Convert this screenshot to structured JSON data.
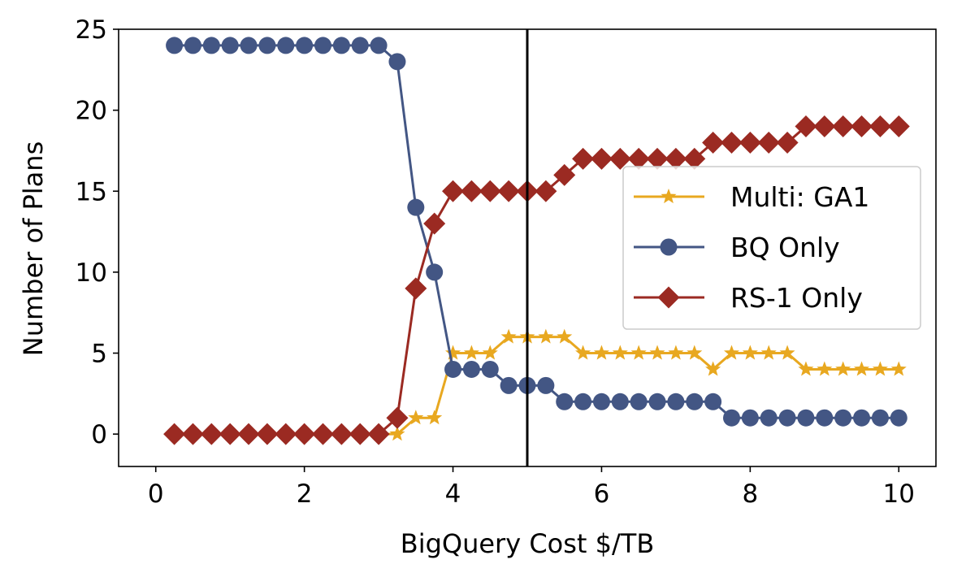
{
  "chart_data": {
    "type": "line",
    "title": "",
    "xlabel": "BigQuery Cost $/TB",
    "ylabel": "Number of Plans",
    "xlim": [
      -0.5,
      10.5
    ],
    "ylim": [
      -2,
      25
    ],
    "xticks": [
      0,
      2,
      4,
      6,
      8,
      10
    ],
    "yticks": [
      0,
      5,
      10,
      15,
      20,
      25
    ],
    "vline": 5,
    "grid": false,
    "legend_position": "center-right",
    "x": [
      0.25,
      0.5,
      0.75,
      1.0,
      1.25,
      1.5,
      1.75,
      2.0,
      2.25,
      2.5,
      2.75,
      3.0,
      3.25,
      3.5,
      3.75,
      4.0,
      4.25,
      4.5,
      4.75,
      5.0,
      5.25,
      5.5,
      5.75,
      6.0,
      6.25,
      6.5,
      6.75,
      7.0,
      7.25,
      7.5,
      7.75,
      8.0,
      8.25,
      8.5,
      8.75,
      9.0,
      9.25,
      9.5,
      9.75,
      10.0
    ],
    "series": [
      {
        "name": "Multi: GA1",
        "color": "#e8a820",
        "marker": "star",
        "values": [
          0,
          0,
          0,
          0,
          0,
          0,
          0,
          0,
          0,
          0,
          0,
          0,
          0,
          1,
          1,
          5,
          5,
          5,
          6,
          6,
          6,
          6,
          5,
          5,
          5,
          5,
          5,
          5,
          5,
          4,
          5,
          5,
          5,
          5,
          4,
          4,
          4,
          4,
          4,
          4
        ]
      },
      {
        "name": "BQ Only",
        "color": "#435684",
        "marker": "circle",
        "values": [
          24,
          24,
          24,
          24,
          24,
          24,
          24,
          24,
          24,
          24,
          24,
          24,
          23,
          14,
          10,
          4,
          4,
          4,
          3,
          3,
          3,
          2,
          2,
          2,
          2,
          2,
          2,
          2,
          2,
          2,
          1,
          1,
          1,
          1,
          1,
          1,
          1,
          1,
          1,
          1
        ]
      },
      {
        "name": "RS-1 Only",
        "color": "#9b2a22",
        "marker": "diamond",
        "values": [
          0,
          0,
          0,
          0,
          0,
          0,
          0,
          0,
          0,
          0,
          0,
          0,
          1,
          9,
          13,
          15,
          15,
          15,
          15,
          15,
          15,
          16,
          17,
          17,
          17,
          17,
          17,
          17,
          17,
          18,
          18,
          18,
          18,
          18,
          19,
          19,
          19,
          19,
          19,
          19
        ]
      }
    ]
  }
}
